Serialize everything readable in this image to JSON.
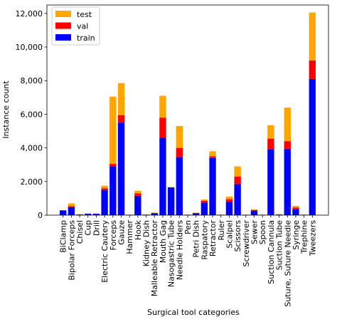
{
  "chart_data": {
    "type": "stacked_bar",
    "x_label": "Surgical tool categories",
    "y_label": "Instance count",
    "categories": [
      "BiClamp",
      "Bipolar Forceps",
      "Chisel",
      "Cup",
      "Drill",
      "Electric Cautery",
      "Forceps",
      "Gauze",
      "Hammer",
      "Hook",
      "Kidney Dish",
      "Malleable Retractor",
      "Mouth Gag",
      "Nasogastric Tube",
      "Needle Holders",
      "Pen",
      "Petri Dish",
      "Raspatory",
      "Retractor",
      "Ruler",
      "Scalpel",
      "Scissors",
      "Screwdriver",
      "Sewer",
      "Spoon",
      "Suction Cannula",
      "Suction Tube",
      "Suture, Suture Needle",
      "Syringe",
      "Trephine",
      "Tweezers"
    ],
    "series": [
      {
        "name": "train",
        "color": "#0000ff",
        "values": [
          280,
          480,
          40,
          80,
          80,
          1500,
          2900,
          5500,
          20,
          1150,
          30,
          120,
          4600,
          1650,
          3450,
          20,
          120,
          750,
          3400,
          20,
          800,
          1850,
          20,
          250,
          20,
          3900,
          40,
          3950,
          350,
          20,
          8100
        ]
      },
      {
        "name": "val",
        "color": "#ff0000",
        "values": [
          10,
          50,
          5,
          10,
          10,
          100,
          150,
          450,
          5,
          150,
          5,
          10,
          1200,
          10,
          550,
          5,
          10,
          100,
          100,
          5,
          150,
          450,
          5,
          50,
          5,
          650,
          5,
          450,
          100,
          5,
          1100
        ]
      },
      {
        "name": "test",
        "color": "#ffa500",
        "values": [
          10,
          170,
          5,
          10,
          10,
          150,
          4000,
          1900,
          5,
          150,
          5,
          20,
          1300,
          10,
          1300,
          5,
          20,
          80,
          300,
          5,
          150,
          600,
          5,
          50,
          5,
          800,
          5,
          2000,
          100,
          5,
          2850
        ]
      }
    ],
    "ylim": [
      0,
      12500
    ],
    "yticks": [
      0,
      {
        "value": 2000,
        "label": "2,000"
      },
      {
        "value": 4000,
        "label": "4,000"
      },
      {
        "value": 6000,
        "label": "6,000"
      },
      {
        "value": 8000,
        "label": "8,000"
      },
      {
        "value": 10000,
        "label": "10,000"
      },
      {
        "value": 12000,
        "label": "12,000"
      }
    ],
    "legend": "upper left"
  }
}
